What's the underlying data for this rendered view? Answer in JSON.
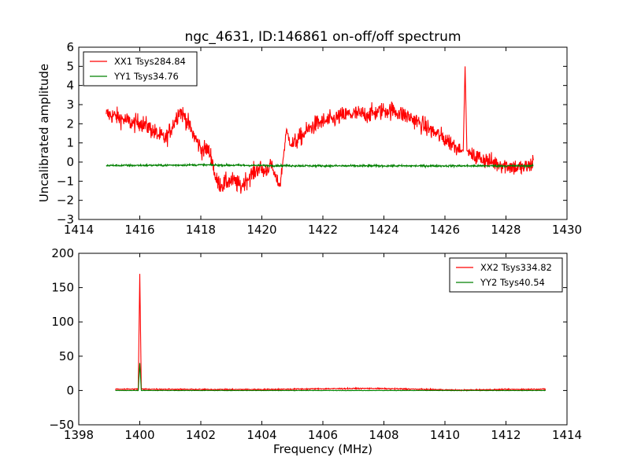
{
  "chart_data": [
    {
      "type": "line",
      "title": "ngc_4631, ID:146861 on-off/off spectrum",
      "xlabel": "",
      "ylabel": "Uncalibrated amplitude",
      "xlim": [
        1414,
        1430
      ],
      "ylim": [
        -3,
        6
      ],
      "xticks": [
        "1414",
        "1416",
        "1418",
        "1420",
        "1422",
        "1424",
        "1426",
        "1428",
        "1430"
      ],
      "yticks": [
        "−3",
        "−2",
        "−1",
        "0",
        "1",
        "2",
        "3",
        "4",
        "5",
        "6"
      ],
      "grid": false,
      "legend_position": "upper-left",
      "series": [
        {
          "name": "XX1 Tsys284.84",
          "color": "#ff0000",
          "x": [
            1414.9,
            1415.2,
            1415.5,
            1415.8,
            1416.0,
            1416.3,
            1416.6,
            1416.85,
            1417.1,
            1417.3,
            1417.5,
            1417.7,
            1417.9,
            1418.05,
            1418.2,
            1418.35,
            1418.5,
            1418.7,
            1418.9,
            1419.1,
            1419.3,
            1419.5,
            1419.7,
            1419.9,
            1420.1,
            1420.3,
            1420.4,
            1420.5,
            1420.6,
            1420.7,
            1420.8,
            1420.9,
            1421.0,
            1421.2,
            1421.4,
            1421.6,
            1421.8,
            1422.0,
            1422.3,
            1422.6,
            1422.9,
            1423.2,
            1423.5,
            1423.8,
            1424.0,
            1424.3,
            1424.6,
            1424.9,
            1425.2,
            1425.5,
            1425.8,
            1426.1,
            1426.4,
            1426.6,
            1426.66,
            1426.72,
            1426.9,
            1427.2,
            1427.5,
            1427.8,
            1428.1,
            1428.4,
            1428.6,
            1428.8,
            1428.9
          ],
          "y": [
            2.5,
            2.4,
            2.2,
            2.0,
            2.1,
            1.8,
            1.4,
            1.2,
            2.0,
            2.7,
            2.3,
            1.6,
            1.0,
            0.6,
            0.7,
            0.3,
            -1.0,
            -1.2,
            -1.0,
            -1.0,
            -1.3,
            -0.9,
            -0.6,
            -0.3,
            -0.5,
            -0.1,
            -0.6,
            -1.0,
            -1.2,
            0.2,
            1.6,
            1.2,
            0.9,
            1.2,
            1.5,
            1.8,
            2.0,
            2.1,
            2.2,
            2.4,
            2.5,
            2.5,
            2.5,
            2.6,
            2.7,
            2.7,
            2.5,
            2.3,
            2.0,
            1.7,
            1.4,
            1.1,
            0.8,
            0.6,
            5.0,
            0.6,
            0.3,
            0.2,
            0.0,
            -0.1,
            -0.2,
            -0.3,
            -0.3,
            -0.2,
            0.1
          ],
          "noise": [
            0.45,
            0.45,
            0.45,
            0.45,
            0.45,
            0.45,
            0.45,
            0.45,
            0.45,
            0.45,
            0.45,
            0.45,
            0.45,
            0.45,
            0.45,
            0.45,
            0.45,
            0.45,
            0.45,
            0.45,
            0.45,
            0.45,
            0.45,
            0.45,
            0.45,
            0.3,
            0.3,
            0.3,
            0.3,
            0.3,
            0.3,
            0.3,
            0.45,
            0.45,
            0.45,
            0.45,
            0.45,
            0.45,
            0.45,
            0.45,
            0.45,
            0.45,
            0.45,
            0.45,
            0.45,
            0.45,
            0.45,
            0.45,
            0.45,
            0.45,
            0.45,
            0.45,
            0.45,
            0.0,
            0.0,
            0.0,
            0.45,
            0.45,
            0.45,
            0.45,
            0.45,
            0.45,
            0.45,
            0.45,
            0.45
          ]
        },
        {
          "name": "YY1 Tsys34.76",
          "color": "#008000",
          "x": [
            1414.9,
            1416.5,
            1418.0,
            1420.0,
            1422.0,
            1424.0,
            1426.0,
            1428.0,
            1428.9
          ],
          "y": [
            -0.18,
            -0.17,
            -0.15,
            -0.18,
            -0.2,
            -0.2,
            -0.2,
            -0.2,
            -0.2
          ],
          "noise": [
            0.05,
            0.05,
            0.05,
            0.05,
            0.05,
            0.05,
            0.05,
            0.05,
            0.05
          ]
        }
      ]
    },
    {
      "type": "line",
      "title": "",
      "xlabel": "Frequency (MHz)",
      "ylabel": "",
      "xlim": [
        1398,
        1414
      ],
      "ylim": [
        -50,
        200
      ],
      "xticks": [
        "1398",
        "1400",
        "1402",
        "1404",
        "1406",
        "1408",
        "1410",
        "1412",
        "1414"
      ],
      "yticks": [
        "−50",
        "0",
        "50",
        "100",
        "150",
        "200"
      ],
      "grid": false,
      "legend_position": "upper-right",
      "series": [
        {
          "name": "XX2 Tsys334.82",
          "color": "#ff0000",
          "x": [
            1399.2,
            1399.95,
            1400.0,
            1400.05,
            1402.0,
            1404.0,
            1406.0,
            1407.5,
            1409.0,
            1410.5,
            1412.0,
            1413.3
          ],
          "y": [
            2,
            2,
            170,
            2,
            1.5,
            1.5,
            2.5,
            3,
            2,
            0.5,
            1.5,
            2
          ],
          "noise": [
            0.8,
            0.8,
            0,
            0.8,
            0.8,
            0.8,
            0.8,
            0.8,
            0.8,
            0.8,
            0.8,
            0.8
          ]
        },
        {
          "name": "YY2 Tsys40.54",
          "color": "#008000",
          "x": [
            1399.2,
            1399.95,
            1400.0,
            1400.05,
            1402.0,
            1406.0,
            1410.0,
            1413.3
          ],
          "y": [
            0,
            0,
            40,
            0,
            0,
            0,
            0,
            0
          ],
          "noise": [
            0.3,
            0.3,
            0,
            0.3,
            0.3,
            0.3,
            0.3,
            0.3
          ]
        }
      ]
    }
  ]
}
